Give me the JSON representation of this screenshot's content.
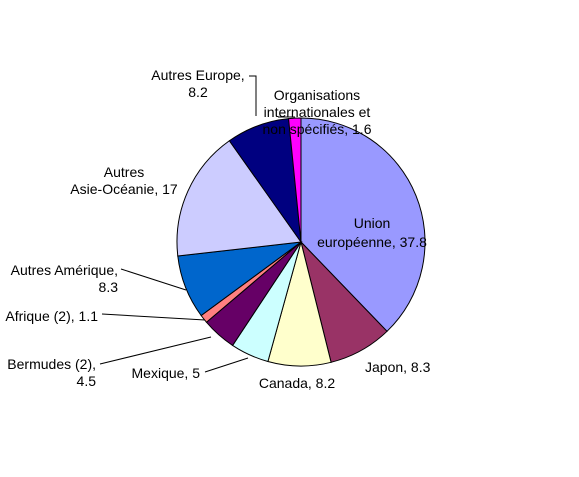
{
  "chart_data": {
    "type": "pie",
    "title": "",
    "series": [
      {
        "name": "share",
        "slices": [
          {
            "key": "eu",
            "label_lines": [
              "Union",
              "européenne, 37.8"
            ],
            "value": 37.8,
            "color": "#9999ff"
          },
          {
            "key": "japon",
            "label_lines": [
              "Japon, 8.3"
            ],
            "value": 8.3,
            "color": "#993366"
          },
          {
            "key": "canada",
            "label_lines": [
              "Canada, 8.2"
            ],
            "value": 8.2,
            "color": "#ffffcc"
          },
          {
            "key": "mexique",
            "label_lines": [
              "Mexique, 5"
            ],
            "value": 5.0,
            "color": "#ccffff"
          },
          {
            "key": "bermudes",
            "label_lines": [
              "Bermudes (2),",
              "4.5"
            ],
            "value": 4.5,
            "color": "#660066"
          },
          {
            "key": "afrique",
            "label_lines": [
              "Afrique (2), 1.1"
            ],
            "value": 1.1,
            "color": "#ff8080"
          },
          {
            "key": "autres-amerique",
            "label_lines": [
              "Autres Amérique,",
              "8.3"
            ],
            "value": 8.3,
            "color": "#0066cc"
          },
          {
            "key": "autres-asie",
            "label_lines": [
              "Autres",
              "Asie-Océanie, 17"
            ],
            "value": 17.0,
            "color": "#ccccff"
          },
          {
            "key": "autres-europe",
            "label_lines": [
              "Autres Europe,",
              "8.2"
            ],
            "value": 8.2,
            "color": "#000080"
          },
          {
            "key": "organisations",
            "label_lines": [
              "Organisations",
              "internationales  et",
              "non spécifiés, 1.6"
            ],
            "value": 1.6,
            "color": "#ff00ff"
          }
        ]
      }
    ]
  }
}
